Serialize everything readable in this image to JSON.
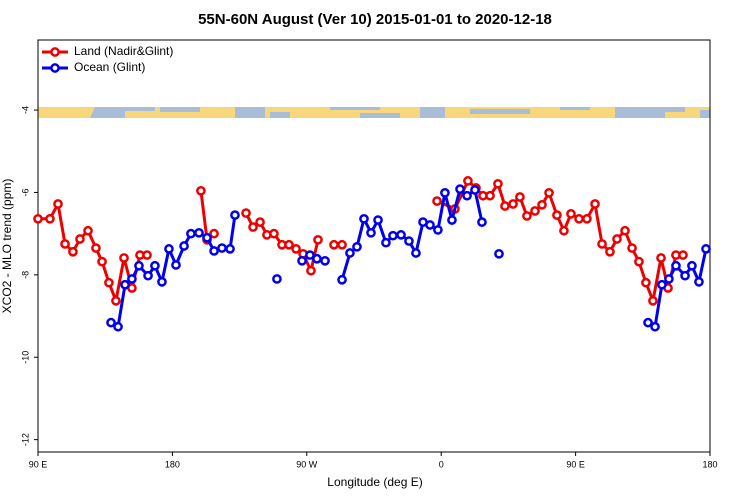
{
  "chart_data": {
    "type": "line",
    "title": "55N-60N August (Ver 10)   2015-01-01 to 2020-12-18",
    "xlabel": "Longitude (deg E)",
    "ylabel": "XCO2 - MLO trend (ppm)",
    "xlim": [
      90,
      540
    ],
    "ylim": [
      -12.3,
      -2.3
    ],
    "xticks": [
      {
        "value": 90,
        "label": "90 E"
      },
      180,
      {
        "value": 270,
        "label": "90 W"
      },
      {
        "value": 360,
        "label": "0"
      },
      {
        "value": 450,
        "label": "90 E"
      },
      {
        "value": 540,
        "label": "180"
      }
    ],
    "yticks": [
      -4,
      -6,
      -8,
      -10,
      -12
    ],
    "legend": "upper left",
    "series": [
      {
        "name": "Land (Nadir&Glint)",
        "color": "#ee0000",
        "x": [
          90.0,
          98.0,
          103.4,
          108.1,
          113.4,
          118.1,
          123.5,
          128.8,
          132.9,
          137.5,
          142.2,
          147.6,
          152.9,
          158.3,
          163.0,
          null,
          199.1,
          203.2,
          207.9,
          null,
          229.3,
          234.0,
          238.7,
          243.3,
          248.0,
          253.4,
          258.1,
          262.8,
          267.5,
          272.8,
          277.5,
          null,
          288.2,
          293.6,
          null,
          357.2,
          369.2,
          377.9,
          383.3,
          388.0,
          392.7,
          398.0,
          402.7,
          408.1,
          412.7,
          417.4,
          422.8,
          427.5,
          432.2,
          437.5,
          442.2,
          446.9,
          452.3,
          457.6,
          463.0,
          467.7,
          473.0,
          477.7,
          483.1,
          487.8,
          492.4,
          497.1,
          501.8,
          507.2,
          511.9,
          517.2,
          521.9
        ],
        "values": [
          -6.64,
          -6.64,
          -6.28,
          -7.25,
          -7.44,
          -7.13,
          -6.93,
          -7.35,
          -7.68,
          -8.19,
          -8.63,
          -7.59,
          -8.32,
          -7.52,
          -7.52,
          null,
          -5.96,
          -7.15,
          -7.0,
          null,
          -6.5,
          -6.84,
          -6.72,
          -7.03,
          -7.0,
          -7.27,
          -7.27,
          -7.37,
          -7.49,
          -7.9,
          -7.15,
          null,
          -7.27,
          -7.27,
          null,
          -6.21,
          -6.4,
          -5.72,
          -5.89,
          -6.08,
          -6.08,
          -5.79,
          -6.33,
          -6.28,
          -6.11,
          -6.57,
          -6.45,
          -6.3,
          -6.01,
          -6.55,
          -6.93,
          -6.52,
          -6.64,
          -6.64,
          -6.28,
          -7.25,
          -7.44,
          -7.13,
          -6.93,
          -7.35,
          -7.68,
          -8.19,
          -8.63,
          -7.59,
          -8.32,
          -7.52,
          -7.52
        ]
      },
      {
        "name": "Ocean (Glint)",
        "color": "#0000ee",
        "x": [
          138.9,
          143.6,
          148.3,
          152.9,
          157.6,
          163.7,
          168.3,
          173.0,
          177.7,
          182.4,
          187.8,
          192.4,
          197.8,
          203.2,
          207.9,
          213.2,
          218.6,
          221.9,
          null,
          250.0,
          null,
          266.8,
          272.1,
          276.8,
          282.2,
          null,
          293.6,
          298.9,
          303.6,
          308.3,
          313.0,
          317.7,
          323.0,
          327.7,
          333.1,
          338.4,
          343.1,
          347.8,
          352.5,
          357.8,
          362.5,
          367.2,
          372.6,
          377.3,
          382.6,
          387.3,
          null,
          398.7,
          null,
          498.5,
          503.2,
          507.8,
          512.5,
          517.2,
          523.3,
          527.9,
          532.6,
          537.3
        ],
        "values": [
          -9.16,
          -9.26,
          -8.24,
          -8.1,
          -7.78,
          -8.02,
          -7.78,
          -8.17,
          -7.37,
          -7.76,
          -7.3,
          -7.0,
          -6.98,
          -7.1,
          -7.42,
          -7.35,
          -7.37,
          -6.55,
          null,
          -8.1,
          null,
          -7.66,
          -7.52,
          -7.61,
          -7.66,
          null,
          -8.12,
          -7.47,
          -7.32,
          -6.64,
          -6.98,
          -6.67,
          -7.22,
          -7.05,
          -7.03,
          -7.18,
          -7.47,
          -6.72,
          -6.79,
          -6.91,
          -6.01,
          -6.67,
          -5.92,
          -6.08,
          -5.94,
          -6.72,
          null,
          -7.49,
          null,
          -9.16,
          -9.26,
          -8.24,
          -8.1,
          -7.78,
          -8.02,
          -7.78,
          -8.17,
          -7.37
        ]
      }
    ]
  }
}
